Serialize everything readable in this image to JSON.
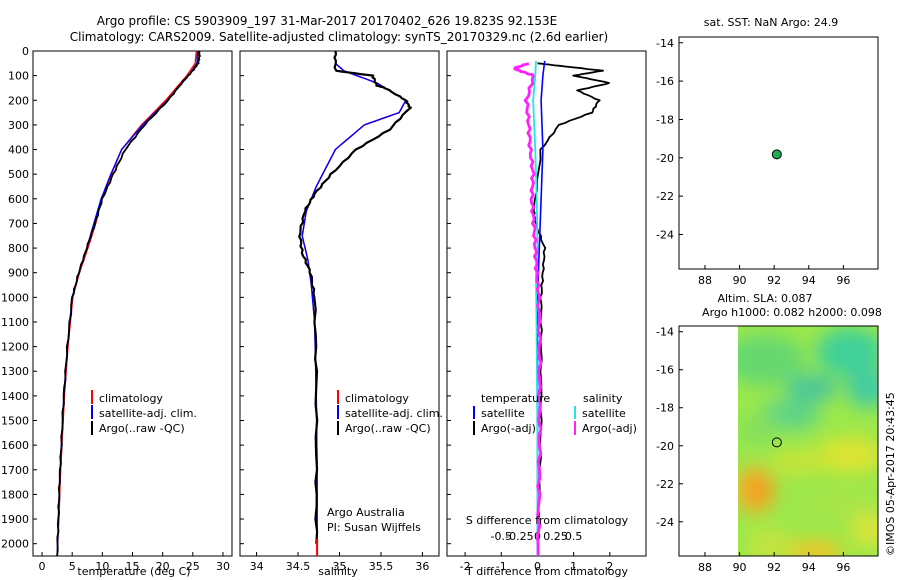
{
  "header": {
    "title_line1": "Argo profile: CS 5903909_197 31-Mar-2017 20170402_626 19.823S 92.153E",
    "title_line2": "Climatology: CARS2009. Satellite-adjusted climatology: synTS_20170329.nc (2.6d earlier)"
  },
  "colors": {
    "climatology": "#ff0000",
    "satellite": "#0000ff",
    "argo": "#000000",
    "salinity_satellite": "#22e5e5",
    "salinity_argo": "#ff22ff",
    "marker_fill": "#22aa55"
  },
  "chart_data": [
    {
      "type": "line",
      "id": "temperature",
      "xlabel": "temperature (deg C)",
      "xlim": [
        -1.5,
        31.5
      ],
      "ylim": [
        2050,
        0
      ],
      "x_ticks": [
        "0",
        "5",
        "10",
        "15",
        "20",
        "25",
        "30"
      ],
      "y_ticks": [
        "0",
        "100",
        "200",
        "300",
        "400",
        "500",
        "600",
        "700",
        "800",
        "900",
        "1000",
        "1100",
        "1200",
        "1300",
        "1400",
        "1500",
        "1600",
        "1700",
        "1800",
        "1900",
        "2000"
      ],
      "legend": [
        "climatology",
        "satellite-adj. clim.",
        "Argo(..raw -QC)"
      ],
      "series": [
        {
          "name": "climatology",
          "x": [
            25.6,
            25.4,
            24.0,
            20.5,
            16.5,
            13.2,
            11.5,
            9.9,
            8.9,
            7.6,
            6.2,
            5.1,
            4.3,
            3.7,
            3.3,
            3.0,
            2.8,
            2.6,
            2.5
          ],
          "y": [
            0,
            50,
            100,
            200,
            300,
            400,
            500,
            600,
            700,
            800,
            900,
            1000,
            1200,
            1400,
            1600,
            1750,
            1900,
            2000,
            2050
          ]
        },
        {
          "name": "satellite-adj. clim.",
          "x": [
            25.8,
            25.7,
            24.3,
            20.8,
            16.7,
            13.2,
            11.4,
            9.8,
            8.6,
            7.4,
            6.1,
            5.0,
            4.2,
            3.6,
            3.2,
            2.9,
            2.7,
            2.6,
            2.5
          ],
          "y": [
            0,
            50,
            100,
            200,
            300,
            400,
            500,
            600,
            700,
            800,
            900,
            1000,
            1200,
            1400,
            1600,
            1750,
            1900,
            2000,
            2050
          ]
        },
        {
          "name": "Argo(..raw -QC)",
          "x": [
            26.0,
            26.1,
            25.9,
            25.0,
            23.5,
            20.9,
            17.0,
            13.8,
            11.8,
            10.0,
            8.8,
            7.4,
            6.1,
            5.0,
            4.2,
            3.6,
            3.2,
            2.9,
            2.7,
            2.5
          ],
          "y": [
            0,
            20,
            50,
            80,
            120,
            200,
            300,
            400,
            500,
            600,
            700,
            800,
            900,
            1000,
            1200,
            1400,
            1600,
            1750,
            1900,
            2050
          ]
        }
      ]
    },
    {
      "type": "line",
      "id": "salinity",
      "xlabel": "salinity",
      "xlim": [
        33.8,
        36.2
      ],
      "ylim": [
        2050,
        0
      ],
      "x_ticks": [
        "34",
        "34.5",
        "35",
        "35.5",
        "36"
      ],
      "legend": [
        "climatology",
        "satellite-adj. clim.",
        "Argo(..raw -QC)"
      ],
      "series": [
        {
          "name": "climatology",
          "x": [
            34.95,
            35.05,
            35.45,
            35.8,
            35.72,
            35.3,
            34.95,
            34.72,
            34.6,
            34.55,
            34.62,
            34.66,
            34.7,
            34.72,
            34.73,
            34.73,
            34.73
          ],
          "y": [
            50,
            80,
            130,
            200,
            250,
            300,
            400,
            550,
            650,
            750,
            850,
            950,
            1100,
            1400,
            1700,
            2000,
            2050
          ]
        },
        {
          "name": "satellite-adj. clim.",
          "x": [
            34.95,
            35.05,
            35.45,
            35.8,
            35.72,
            35.3,
            34.95,
            34.72,
            34.6,
            34.55,
            34.62,
            34.66,
            34.7,
            34.72,
            34.73,
            34.73,
            34.73
          ],
          "y": [
            50,
            80,
            130,
            200,
            250,
            300,
            400,
            550,
            650,
            750,
            850,
            950,
            1100,
            1400,
            1700,
            2000,
            2050
          ]
        },
        {
          "name": "Argo(..raw -QC)",
          "x": [
            34.95,
            34.95,
            35.4,
            35.45,
            35.55,
            35.8,
            35.85,
            35.6,
            35.2,
            34.9,
            34.7,
            34.58,
            34.52,
            34.55,
            34.65,
            34.7,
            34.72,
            34.72,
            34.72
          ],
          "y": [
            0,
            80,
            100,
            140,
            150,
            200,
            230,
            320,
            400,
            500,
            580,
            650,
            740,
            820,
            900,
            1000,
            1300,
            1700,
            2000
          ]
        }
      ]
    },
    {
      "type": "line",
      "id": "difference",
      "xlabel": "T difference from climatology",
      "top_label": "S difference from climatology",
      "xlim": [
        -2.5,
        3.0
      ],
      "ylim": [
        2050,
        0
      ],
      "x_ticks": [
        "-2",
        "-1",
        "0",
        "1",
        "2"
      ],
      "s_ticks": [
        "-0.5",
        "-0.25",
        "0",
        "0.25",
        "0.5"
      ],
      "legend_headers": [
        "temperature",
        "salinity"
      ],
      "legend": [
        "satellite",
        "Argo(-adj)",
        "satellite",
        "Argo(-adj)"
      ],
      "series": [
        {
          "name": "temperature satellite",
          "x": [
            0.2,
            0.15,
            0.1,
            0.15,
            0.1,
            0.05,
            0.0,
            0.0,
            0.0,
            0.0
          ],
          "y": [
            40,
            100,
            200,
            400,
            600,
            800,
            1000,
            1400,
            1800,
            2050
          ]
        },
        {
          "name": "temperature Argo(-adj)",
          "x": [
            0.0,
            0.6,
            1.8,
            1.0,
            2.0,
            1.1,
            1.7,
            1.5,
            0.6,
            0.1,
            -0.1,
            -0.05,
            0.2,
            0.15,
            0.1,
            0.1,
            0.1,
            0.05,
            0.0
          ],
          "y": [
            50,
            60,
            80,
            100,
            130,
            160,
            200,
            250,
            300,
            400,
            650,
            700,
            800,
            900,
            1000,
            1200,
            1500,
            1800,
            2050
          ]
        },
        {
          "name": "salinity satellite",
          "x": [
            -0.02,
            -0.03,
            -0.06,
            -0.03,
            -0.01,
            0.0,
            -0.02,
            -0.01,
            0.0,
            0.0
          ],
          "y": [
            40,
            100,
            200,
            400,
            600,
            800,
            900,
            1200,
            1600,
            2050
          ]
        },
        {
          "name": "salinity Argo(-adj)",
          "x": [
            -0.12,
            -0.32,
            -0.25,
            -0.05,
            -0.15,
            -0.12,
            -0.1,
            -0.06,
            -0.08,
            -0.05,
            -0.03,
            -0.01,
            0.02,
            0.03,
            0.03,
            0.03,
            0.02,
            0.01
          ],
          "y": [
            50,
            70,
            80,
            100,
            200,
            300,
            400,
            500,
            600,
            700,
            800,
            900,
            1000,
            1200,
            1400,
            1600,
            1800,
            2050
          ]
        }
      ]
    },
    {
      "type": "scatter",
      "id": "sst_map",
      "title": "sat. SST: NaN Argo: 24.9",
      "xlim": [
        86.5,
        98.0
      ],
      "ylim": [
        -25.8,
        -13.7
      ],
      "x_ticks": [
        "88",
        "90",
        "92",
        "94",
        "96"
      ],
      "y_ticks": [
        "-14",
        "-16",
        "-18",
        "-20",
        "-22",
        "-24"
      ],
      "points": [
        {
          "lon": 92.153,
          "lat": -19.823
        }
      ]
    },
    {
      "type": "heatmap",
      "id": "sla_map",
      "title_line1": "Altim. SLA: 0.087",
      "title_line2": "Argo h1000: 0.082 h2000: 0.098",
      "xlim": [
        86.5,
        98.0
      ],
      "ylim": [
        -25.8,
        -13.7
      ],
      "x_ticks": [
        "88",
        "90",
        "92",
        "94",
        "96"
      ],
      "y_ticks": [
        "-14",
        "-16",
        "-18",
        "-20",
        "-22",
        "-24"
      ],
      "points": [
        {
          "lon": 92.153,
          "lat": -19.823
        }
      ]
    }
  ],
  "footer": {
    "credit": "©IMOS 05-Apr-2017 20:43:45"
  },
  "annotations": {
    "institution": "Argo Australia",
    "pi": "PI: Susan Wijffels"
  }
}
